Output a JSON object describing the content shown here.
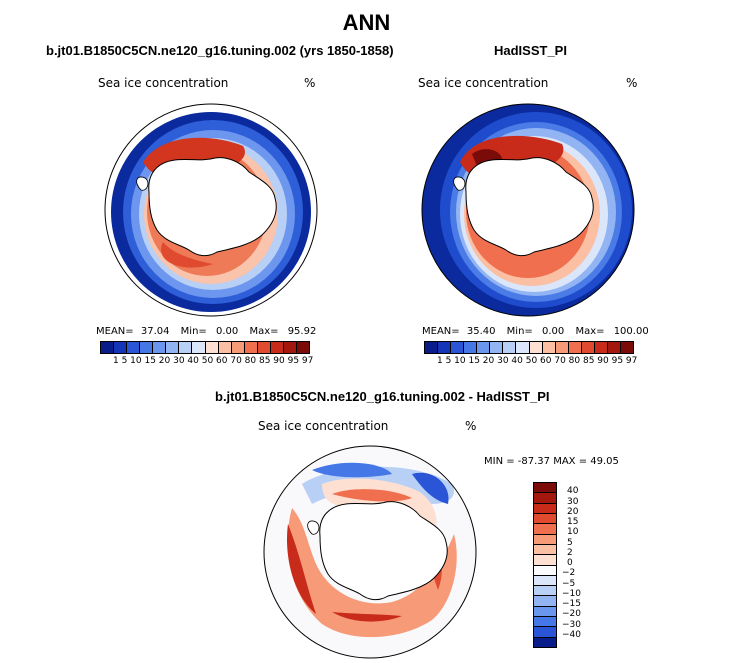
{
  "title": "ANN",
  "panels": {
    "left": {
      "case": "b.jt01.B1850C5CN.ne120_g16.tuning.002 (yrs 1850-1858)",
      "variable": "Sea ice concentration",
      "units": "%",
      "mean_label": "MEAN=",
      "mean": "37.04",
      "min_label": "Min=",
      "min": "0.00",
      "max_label": "Max=",
      "max": "95.92"
    },
    "right": {
      "case": "HadISST_PI",
      "variable": "Sea ice concentration",
      "units": "%",
      "mean_label": "MEAN=",
      "mean": "35.40",
      "min_label": "Min=",
      "min": "0.00",
      "max_label": "Max=",
      "max": "100.00"
    },
    "diff": {
      "case": "b.jt01.B1850C5CN.ne120_g16.tuning.002 - HadISST_PI",
      "variable": "Sea ice concentration",
      "units": "%",
      "minmax_text": "MIN = -87.37 MAX =  49.05"
    }
  },
  "colorbar_levels": {
    "ticks": "1  5 10 15 20 30 40 50 60 70 80 85 90 95 97",
    "colors": [
      "#081d8a",
      "#1535b8",
      "#2a55d6",
      "#4577e6",
      "#6a96ee",
      "#92b4f2",
      "#b8cff6",
      "#dce6fa",
      "#fde0d2",
      "#fbbfa3",
      "#f79a78",
      "#ef6f4e",
      "#e04a2e",
      "#c82b1a",
      "#a3170f",
      "#7a0b08"
    ]
  },
  "diff_colorbar": {
    "labels": [
      "40",
      "30",
      "20",
      "15",
      "10",
      "5",
      "2",
      "0",
      "−2",
      "−5",
      "−10",
      "−15",
      "−20",
      "−30",
      "−40"
    ],
    "colors": [
      "#7a0b08",
      "#a3170f",
      "#c82b1a",
      "#e04a2e",
      "#ef6f4e",
      "#f79a78",
      "#fbbfa3",
      "#fde0d2",
      "#fbfbfd",
      "#dce6fa",
      "#b8cff6",
      "#92b4f2",
      "#6a96ee",
      "#4577e6",
      "#2a55d6",
      "#081d8a"
    ]
  }
}
